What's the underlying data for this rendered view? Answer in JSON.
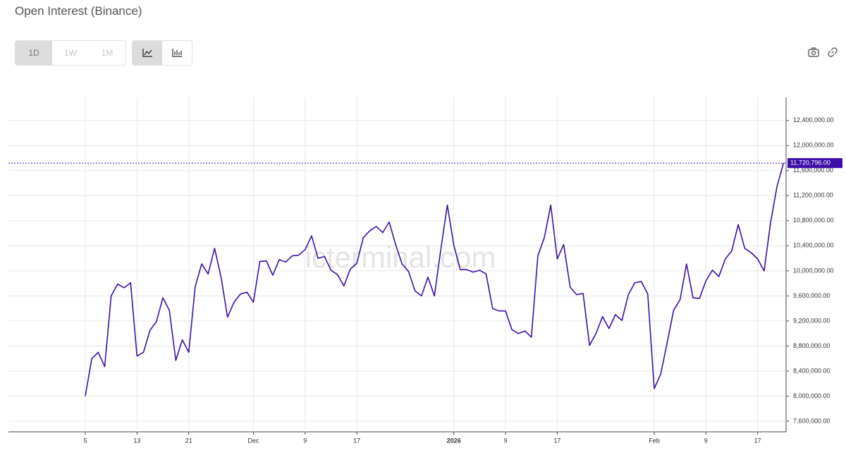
{
  "chart_data": {
    "type": "line",
    "title": "Open Interest (Binance)",
    "watermark": "icterminal.com",
    "categories": [
      "5",
      null,
      null,
      null,
      null,
      null,
      null,
      null,
      "13",
      null,
      null,
      null,
      null,
      null,
      null,
      null,
      "21",
      null,
      null,
      null,
      null,
      null,
      null,
      null,
      null,
      null,
      "Dec",
      null,
      null,
      null,
      null,
      null,
      null,
      null,
      "9",
      null,
      null,
      null,
      null,
      null,
      null,
      null,
      "17",
      null,
      null,
      null,
      null,
      null,
      null,
      null,
      null,
      null,
      null,
      null,
      null,
      null,
      null,
      "2026",
      null,
      null,
      null,
      null,
      null,
      null,
      null,
      "9",
      null,
      null,
      null,
      null,
      null,
      null,
      null,
      "17",
      null,
      null,
      null,
      null,
      null,
      null,
      null,
      null,
      null,
      null,
      null,
      null,
      null,
      null,
      "Feb",
      null,
      null,
      null,
      null,
      null,
      null,
      null,
      "9",
      null,
      null,
      null,
      null,
      null,
      null,
      null,
      "17",
      null,
      null,
      null,
      null
    ],
    "series": [
      {
        "name": "Open Interest",
        "color": "#3d0ea8",
        "values": [
          8000000,
          8600000,
          8700000,
          8470000,
          9600000,
          9790000,
          9730000,
          9810000,
          8640000,
          8700000,
          9050000,
          9190000,
          9570000,
          9370000,
          8570000,
          8900000,
          8700000,
          9750000,
          10110000,
          9950000,
          10360000,
          9900000,
          9260000,
          9500000,
          9630000,
          9660000,
          9500000,
          10150000,
          10160000,
          9930000,
          10180000,
          10140000,
          10240000,
          10250000,
          10340000,
          10560000,
          10200000,
          10230000,
          10010000,
          9940000,
          9760000,
          10030000,
          10120000,
          10530000,
          10640000,
          10710000,
          10610000,
          10780000,
          10420000,
          10110000,
          9990000,
          9680000,
          9600000,
          9900000,
          9600000,
          10350000,
          11050000,
          10410000,
          10020000,
          10020000,
          9980000,
          10010000,
          9950000,
          9400000,
          9360000,
          9360000,
          9060000,
          9000000,
          9040000,
          8940000,
          10240000,
          10530000,
          11050000,
          10190000,
          10420000,
          9740000,
          9620000,
          9640000,
          8810000,
          9000000,
          9270000,
          9080000,
          9300000,
          9210000,
          9620000,
          9810000,
          9830000,
          9630000,
          8120000,
          8350000,
          8850000,
          9370000,
          9540000,
          10110000,
          9570000,
          9560000,
          9840000,
          10010000,
          9910000,
          10190000,
          10320000,
          10740000,
          10360000,
          10290000,
          10190000,
          10000000,
          10770000,
          11350000,
          11720796
        ],
        "value_labels": [
          null,
          null,
          null,
          null,
          null,
          null,
          null,
          null,
          null,
          null,
          null,
          null,
          null,
          null,
          null,
          null,
          null,
          null,
          null,
          null,
          null,
          null,
          null,
          null,
          null,
          null,
          null,
          null,
          null,
          null,
          null,
          null,
          null,
          null,
          null,
          null,
          null,
          null,
          null,
          null,
          null,
          null,
          null,
          null,
          null,
          null,
          null,
          null,
          null,
          null,
          null,
          null,
          null,
          null,
          null,
          null,
          null,
          null,
          null,
          null,
          null,
          null,
          null,
          null,
          null,
          null,
          null,
          null,
          null,
          null,
          null,
          null,
          null,
          null,
          null,
          null,
          null,
          null,
          null,
          null,
          null,
          null,
          null,
          null,
          null,
          null,
          null,
          null,
          null,
          null,
          null,
          null,
          null,
          null,
          null,
          null,
          null,
          null,
          null,
          null,
          null,
          null,
          null,
          null,
          null,
          null,
          null,
          null,
          "11,720,796.00"
        ]
      }
    ],
    "ylim": [
      7430000,
      12770000
    ],
    "yticks": [
      {
        "value": 7600000,
        "label": "7,600,000.00"
      },
      {
        "value": 8000000,
        "label": "8,000,000.00"
      },
      {
        "value": 8400000,
        "label": "8,400,000.00"
      },
      {
        "value": 8800000,
        "label": "8,800,000.00"
      },
      {
        "value": 9200000,
        "label": "9,200,000.00"
      },
      {
        "value": 9600000,
        "label": "9,600,000.00"
      },
      {
        "value": 10000000,
        "label": "10,000,000.00"
      },
      {
        "value": 10400000,
        "label": "10,400,000.00"
      },
      {
        "value": 10800000,
        "label": "10,800,000.00"
      },
      {
        "value": 11200000,
        "label": "11,200,000.00"
      },
      {
        "value": 11600000,
        "label": "11,600,000.00"
      },
      {
        "value": 12000000,
        "label": "12,000,000.00"
      },
      {
        "value": 12400000,
        "label": "12,400,000.00"
      }
    ],
    "grid": true,
    "bold_categories": [
      "2026"
    ]
  },
  "toolbar": {
    "timeframes": [
      "1D",
      "1W",
      "1M"
    ],
    "active_timeframe": 0
  }
}
